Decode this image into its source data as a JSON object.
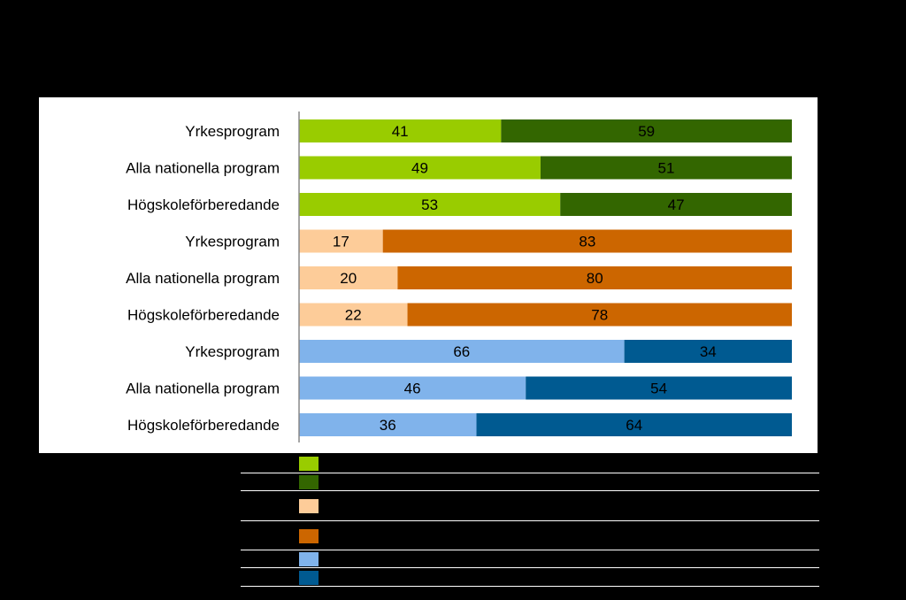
{
  "chart_data": {
    "type": "bar",
    "orientation": "horizontal",
    "stacked": true,
    "percent_stacked": true,
    "categories": [
      "Yrkesprogram",
      "Alla nationella program",
      "Högskoleförberedande",
      "Yrkesprogram",
      "Alla nationella program",
      "Högskoleförberedande",
      "Yrkesprogram",
      "Alla nationella program",
      "Högskoleförberedande"
    ],
    "groups": [
      {
        "rows": [
          0,
          1,
          2
        ],
        "series": [
          {
            "color": "#99cc00",
            "values": [
              41,
              49,
              53
            ]
          },
          {
            "color": "#336600",
            "values": [
              59,
              51,
              47
            ]
          }
        ]
      },
      {
        "rows": [
          3,
          4,
          5
        ],
        "series": [
          {
            "color": "#fdcc99",
            "values": [
              17,
              20,
              22
            ]
          },
          {
            "color": "#cc6600",
            "values": [
              83,
              80,
              78
            ]
          }
        ]
      },
      {
        "rows": [
          6,
          7,
          8
        ],
        "series": [
          {
            "color": "#80b3eb",
            "values": [
              66,
              46,
              36
            ]
          },
          {
            "color": "#005a91",
            "values": [
              34,
              54,
              64
            ]
          }
        ]
      }
    ],
    "xlim": [
      0,
      100
    ],
    "grid": false,
    "legend_position": "bottom",
    "legend_colors": [
      "#99cc00",
      "#336600",
      "#fdcc99",
      "#cc6600",
      "#80b3eb",
      "#005a91"
    ]
  }
}
